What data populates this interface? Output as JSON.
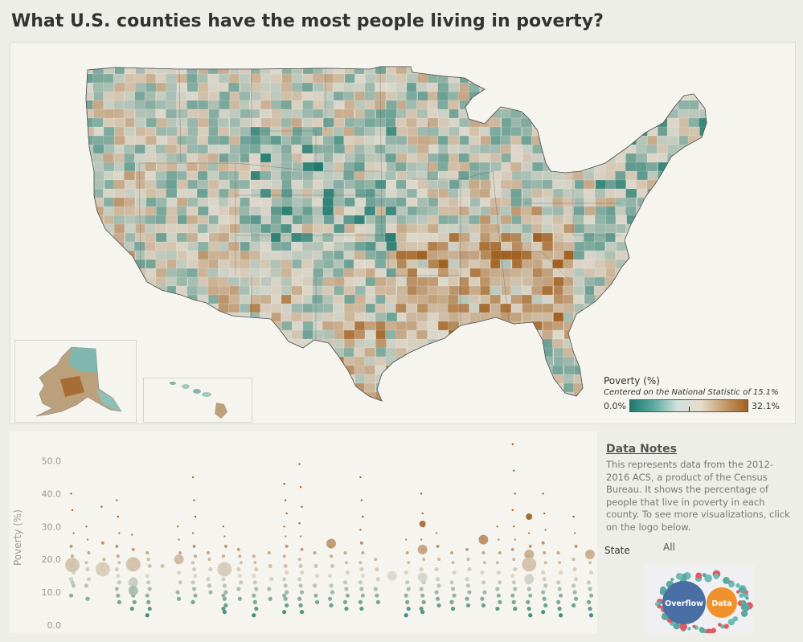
{
  "title": "What U.S. counties have the most people living in poverty?",
  "colors": {
    "low": "#1f7a6e",
    "mid": "#ddd8cc",
    "high": "#a2601f",
    "panel": "#f6f4ee",
    "background": "#eeeee8"
  },
  "legend": {
    "title": "Poverty (%)",
    "subtitle": "Centered on the National Statistic of 15.1%",
    "min_label": "0.0%",
    "max_label": "32.1%"
  },
  "map": {
    "regions": [
      "contiguous-us",
      "alaska",
      "hawaii"
    ]
  },
  "chart_data": {
    "type": "scatter",
    "title": "",
    "xlabel": "",
    "ylabel": "Poverty (%)",
    "ylim": [
      0,
      55
    ],
    "yticks": [
      "50.0",
      "40.0",
      "30.0",
      "20.0",
      "10.0",
      "0.0"
    ],
    "ytick_values": [
      50,
      40,
      30,
      20,
      10,
      0
    ],
    "national_center": 15.1,
    "columns": [
      {
        "index": 1,
        "values": [
          40.0,
          35.0,
          28.0,
          24.0,
          21.0,
          19.0,
          18.5,
          18.0,
          16.0,
          14.0,
          13.0,
          12.0,
          9.0
        ],
        "big": [
          18.3
        ]
      },
      {
        "index": 2,
        "values": [
          30.0,
          26.0,
          22.0,
          19.0,
          17.0,
          14.0,
          12.0,
          8.0
        ],
        "big": []
      },
      {
        "index": 3,
        "values": [
          36.0,
          25.0,
          20.0,
          18.0,
          17.0
        ],
        "big": [
          17.0
        ]
      },
      {
        "index": 4,
        "values": [
          38.0,
          33.0,
          28.0,
          24.0,
          21.0,
          19.0,
          17.0,
          15.0,
          13.0,
          11.0,
          9.0,
          7.0
        ],
        "big": []
      },
      {
        "index": 5,
        "values": [
          27.5,
          23.0,
          20.0,
          17.0,
          14.0,
          12.0,
          11.0,
          9.0,
          7.0,
          5.0
        ],
        "big": [
          18.5,
          13.0,
          10.5
        ]
      },
      {
        "index": 6,
        "values": [
          22.0,
          20.0,
          18.0,
          15.0,
          13.0,
          11.0,
          9.0,
          7.0,
          5.0,
          3.0
        ],
        "big": []
      },
      {
        "index": 7,
        "values": [
          18.0
        ],
        "big": []
      },
      {
        "index": 8,
        "values": [
          30.0,
          26.0,
          22.0,
          19.0,
          16.0,
          13.0,
          10.0,
          8.0
        ],
        "big": [
          20.0
        ]
      },
      {
        "index": 9,
        "values": [
          45.0,
          38.0,
          33.0,
          28.0,
          24.0,
          21.0,
          19.0,
          17.0,
          15.0,
          13.0,
          11.0,
          9.0,
          7.0
        ],
        "big": []
      },
      {
        "index": 10,
        "values": [
          22.0,
          20.0,
          17.0,
          14.0,
          12.0,
          10.0
        ],
        "big": []
      },
      {
        "index": 11,
        "values": [
          30.0,
          27.0,
          24.0,
          21.0,
          18.0,
          16.0,
          14.0,
          12.0,
          10.0,
          9.0,
          8.0,
          6.0,
          5.0,
          4.0
        ],
        "big": [
          17.0
        ]
      },
      {
        "index": 12,
        "values": [
          23.0,
          21.0,
          19.0,
          17.0,
          15.0,
          13.0,
          11.0,
          8.0
        ],
        "big": []
      },
      {
        "index": 13,
        "values": [
          21.0,
          19.0,
          17.0,
          15.0,
          13.0,
          11.0,
          9.0,
          7.0,
          5.0,
          3.0
        ],
        "big": []
      },
      {
        "index": 14,
        "values": [
          22.0,
          18.0,
          14.0,
          11.0,
          8.0
        ],
        "big": []
      },
      {
        "index": 15,
        "values": [
          43.0,
          38.0,
          34.0,
          30.0,
          27.0,
          24.0,
          21.0,
          18.0,
          16.0,
          14.0,
          12.0,
          10.0,
          9.0,
          8.0,
          6.0,
          4.0
        ],
        "big": []
      },
      {
        "index": 16,
        "values": [
          49.0,
          42.0,
          36.0,
          31.0,
          27.0,
          23.0,
          20.0,
          18.0,
          16.0,
          14.0,
          12.0,
          10.0,
          8.0,
          6.0,
          4.0
        ],
        "big": []
      },
      {
        "index": 17,
        "values": [
          22.0,
          18.0,
          15.0,
          12.0,
          9.0,
          7.0
        ],
        "big": []
      },
      {
        "index": 18,
        "values": [
          24.0,
          21.0,
          18.0,
          15.0,
          12.0,
          10.0,
          8.0,
          6.0
        ],
        "big": [
          24.8
        ]
      },
      {
        "index": 19,
        "values": [
          22.0,
          19.0,
          16.0,
          13.0,
          11.0,
          9.0,
          7.0,
          5.0
        ],
        "big": []
      },
      {
        "index": 20,
        "values": [
          45.0,
          38.0,
          33.0,
          29.0,
          25.0,
          22.0,
          19.0,
          17.0,
          15.0,
          13.0,
          11.0,
          9.0,
          7.0,
          5.0
        ],
        "big": []
      },
      {
        "index": 21,
        "values": [
          20.0,
          17.0,
          14.0,
          11.0,
          9.0,
          7.0
        ],
        "big": []
      },
      {
        "index": 22,
        "values": [
          15.0
        ],
        "big": [
          15.0
        ]
      },
      {
        "index": 23,
        "values": [
          26.0,
          22.0,
          19.0,
          16.0,
          13.0,
          11.0,
          9.0,
          7.0,
          5.0,
          3.0
        ],
        "big": []
      },
      {
        "index": 24,
        "values": [
          40.0,
          34.0,
          30.0,
          26.0,
          23.0,
          20.0,
          17.0,
          15.0,
          13.0,
          11.0,
          9.0,
          7.0,
          5.0,
          4.0
        ],
        "big": [
          30.8,
          23.0,
          14.5
        ]
      },
      {
        "index": 25,
        "values": [
          28.0,
          24.0,
          20.0,
          17.0,
          14.0,
          12.0,
          10.0,
          8.0,
          6.0
        ],
        "big": []
      },
      {
        "index": 26,
        "values": [
          22.0,
          19.0,
          16.0,
          13.0,
          11.0,
          9.0,
          7.0,
          5.0
        ],
        "big": []
      },
      {
        "index": 27,
        "values": [
          23.0,
          20.0,
          17.0,
          14.0,
          12.0,
          10.0,
          8.0,
          6.0
        ],
        "big": []
      },
      {
        "index": 28,
        "values": [
          26.0,
          22.0,
          19.0,
          16.0,
          13.0,
          10.0,
          8.0,
          6.0
        ],
        "big": [
          26.0
        ]
      },
      {
        "index": 29,
        "values": [
          30.0,
          26.0,
          22.0,
          19.0,
          16.0,
          13.0,
          11.0,
          9.0,
          7.0,
          5.0
        ],
        "big": []
      },
      {
        "index": 30,
        "values": [
          55.0,
          47.0,
          40.0,
          35.0,
          30.0,
          26.0,
          23.0,
          20.0,
          17.0,
          15.0,
          13.0,
          11.0,
          9.0,
          7.0,
          5.0
        ],
        "big": []
      },
      {
        "index": 31,
        "values": [
          33.0,
          28.0,
          24.0,
          21.0,
          18.0,
          15.0,
          13.0,
          11.0,
          9.0,
          7.0,
          5.0,
          3.0
        ],
        "big": [
          33.0,
          21.5,
          18.5,
          14.0
        ]
      },
      {
        "index": 32,
        "values": [
          40.0,
          34.0,
          29.0,
          25.0,
          22.0,
          19.0,
          16.0,
          14.0,
          12.0,
          10.0,
          8.0,
          6.0,
          4.0
        ],
        "big": []
      },
      {
        "index": 33,
        "values": [
          22.0,
          19.0,
          16.0,
          13.0,
          11.0,
          9.0,
          7.0,
          5.0,
          3.0
        ],
        "big": []
      },
      {
        "index": 34,
        "values": [
          33.0,
          28.0,
          24.0,
          20.0,
          17.0,
          14.0,
          12.0,
          10.0,
          8.0,
          6.0
        ],
        "big": []
      },
      {
        "index": 35,
        "values": [
          22.0,
          19.0,
          16.0,
          13.0,
          11.0,
          9.0,
          7.0,
          5.0,
          3.0
        ],
        "big": [
          21.5
        ]
      }
    ]
  },
  "notes": {
    "title": "Data Notes",
    "body": "This represents data from the 2012-2016 ACS, a product of the Census Bureau. It shows the percentage of people that live in poverty in each county. To see more visualizations, click on the logo below."
  },
  "filter": {
    "label": "State",
    "value": "All"
  },
  "logo": {
    "text_left": "Overflow",
    "text_right": "Data",
    "color_left": "#4a6fa5",
    "color_right": "#f0922b",
    "dot_colors": [
      "#e05a64",
      "#5aa9a0",
      "#6bbcb4"
    ]
  }
}
